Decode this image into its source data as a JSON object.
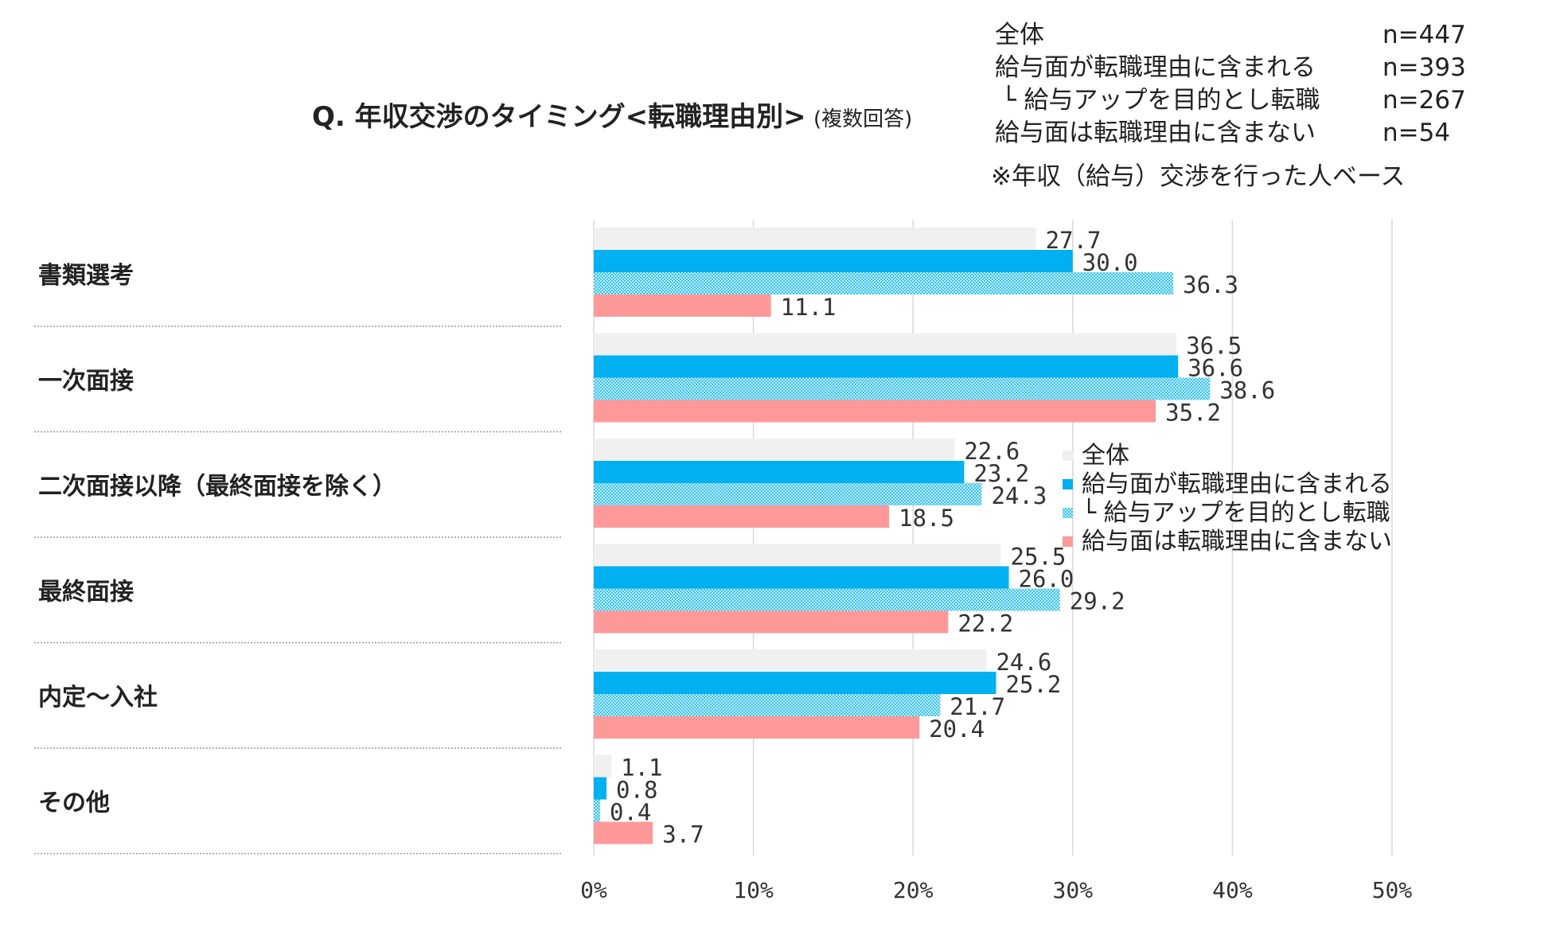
{
  "title": {
    "main": "Q. 年収交渉のタイミング<転職理由別>",
    "sub": "(複数回答)"
  },
  "sample_sizes": [
    {
      "label": "全体",
      "n": "n=447"
    },
    {
      "label": "給与面が転職理由に含まれる",
      "n": "n=393"
    },
    {
      "label": "└ 給与アップを目的とし転職",
      "n": "n=267"
    },
    {
      "label": "給与面は転職理由に含まない",
      "n": "n=54"
    }
  ],
  "note": "※年収（給与）交渉を行った人ベース",
  "colors": {
    "全体": "#f0f0f0",
    "給与面が転職理由に含まれる": "#00b0f0",
    "給与アップを目的とし転職": "#5fd0f0",
    "給与面は転職理由に含まない": "#ff9999",
    "grid": "#d9d9d9",
    "separator": "#999999"
  },
  "chart_data": {
    "type": "bar",
    "orientation": "horizontal",
    "categories": [
      "書類選考",
      "一次面接",
      "二次面接以降（最終面接を除く）",
      "最終面接",
      "内定～入社",
      "その他"
    ],
    "series": [
      {
        "name": "全体",
        "values": [
          27.7,
          36.5,
          22.6,
          25.5,
          24.6,
          1.1
        ],
        "pattern": "solid"
      },
      {
        "name": "給与面が転職理由に含まれる",
        "values": [
          30.0,
          36.6,
          23.2,
          26.0,
          25.2,
          0.8
        ],
        "pattern": "solid"
      },
      {
        "name": "└ 給与アップを目的とし転職",
        "values": [
          36.3,
          38.6,
          24.3,
          29.2,
          21.7,
          0.4
        ],
        "pattern": "dotted"
      },
      {
        "name": "給与面は転職理由に含まない",
        "values": [
          11.1,
          35.2,
          18.5,
          22.2,
          20.4,
          3.7
        ],
        "pattern": "solid"
      }
    ],
    "xlim": [
      0,
      50
    ],
    "xticks": [
      "0%",
      "10%",
      "20%",
      "30%",
      "40%",
      "50%"
    ],
    "xtick_values": [
      0,
      10,
      20,
      30,
      40,
      50
    ],
    "grid": "vertical",
    "legend_position": "right, overlapping plot"
  }
}
